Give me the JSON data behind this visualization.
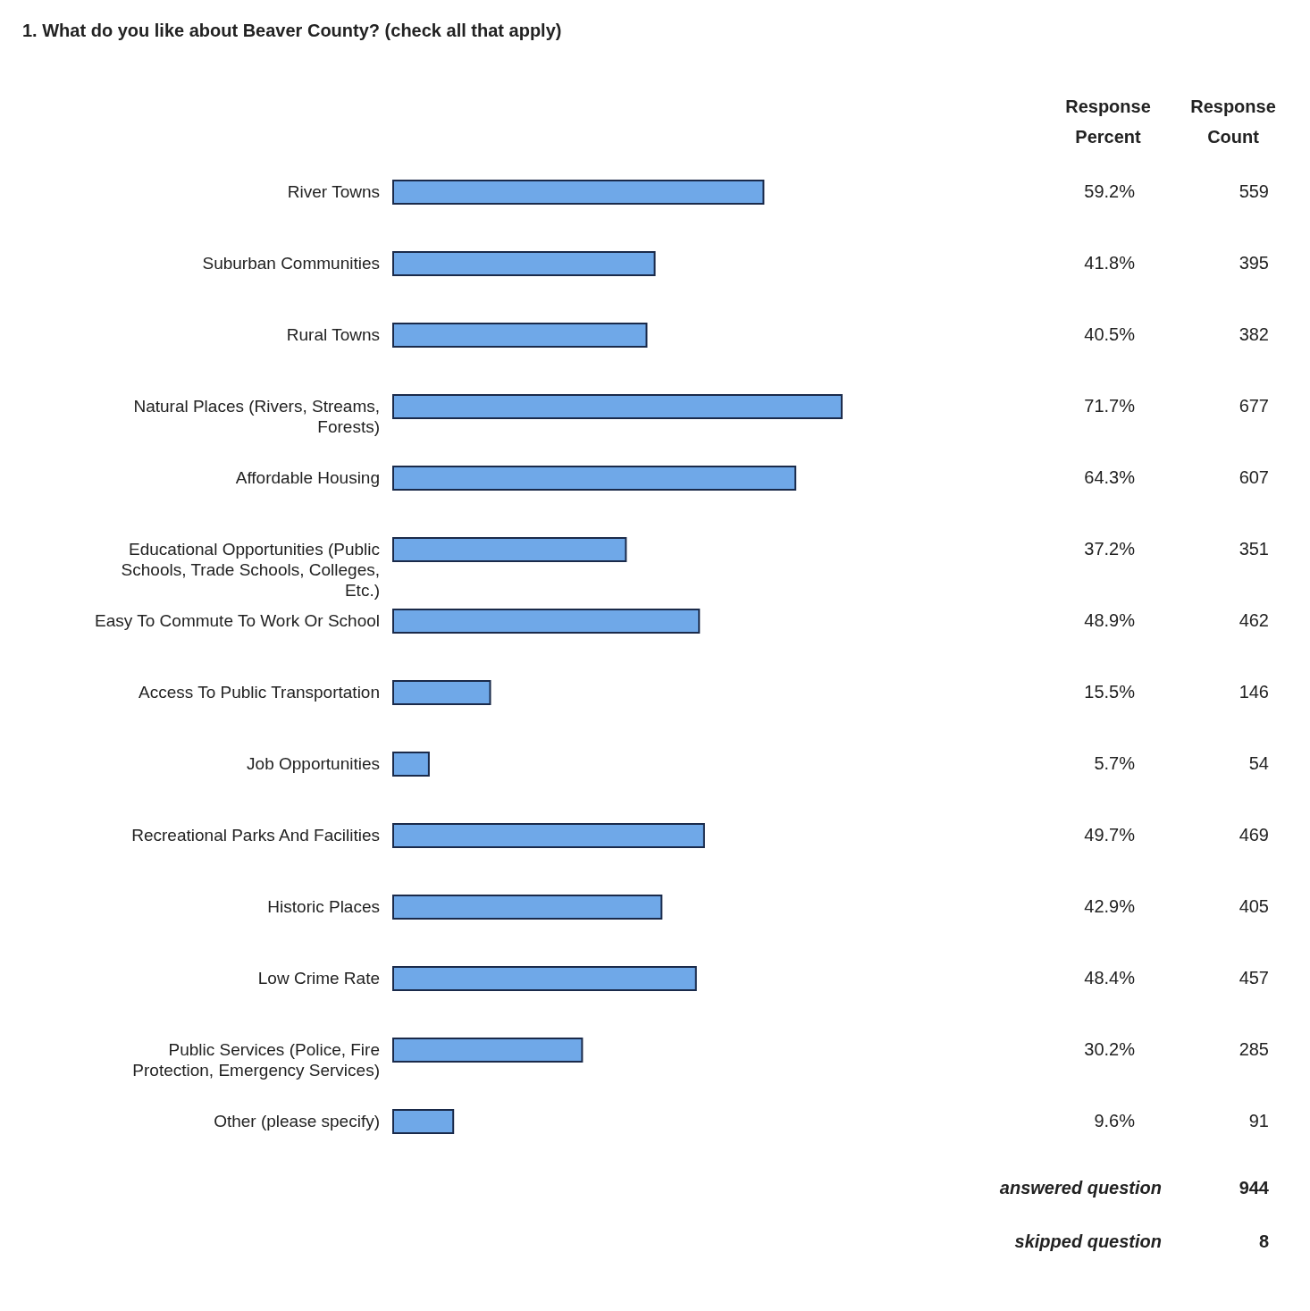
{
  "chart_data": {
    "type": "bar",
    "orientation": "horizontal",
    "title": "1. What do you like about Beaver County? (check all that apply)",
    "categories": [
      "River Towns",
      "Suburban Communities",
      "Rural Towns",
      "Natural Places (Rivers, Streams, Forests)",
      "Affordable Housing",
      "Educational Opportunities (Public Schools, Trade Schools, Colleges, Etc.)",
      "Easy To Commute To Work Or School",
      "Access To Public Transportation",
      "Job Opportunities",
      "Recreational Parks And Facilities",
      "Historic Places",
      "Low Crime Rate",
      "Public Services (Police, Fire Protection, Emergency Services)",
      "Other (please specify)"
    ],
    "values": [
      59.2,
      41.8,
      40.5,
      71.7,
      64.3,
      37.2,
      48.9,
      15.5,
      5.7,
      49.7,
      42.9,
      48.4,
      30.2,
      9.6
    ],
    "value_labels": [
      "59.2%",
      "41.8%",
      "40.5%",
      "71.7%",
      "64.3%",
      "37.2%",
      "48.9%",
      "15.5%",
      "5.7%",
      "49.7%",
      "42.9%",
      "48.4%",
      "30.2%",
      "9.6%"
    ],
    "colors": [
      "#6fa8e8",
      "#6fa8e8",
      "#6fa8e8",
      "#6fa8e8",
      "#6fa8e8",
      "#6fa8e8",
      "#6fa8e8",
      "#6fa8e8",
      "#6fa8e8",
      "#6fa8e8",
      "#6fa8e8",
      "#6fa8e8",
      "#6fa8e8",
      "#6fa8e8"
    ],
    "annotations": [
      "Response Percent",
      "Response Count",
      "559",
      "395",
      "382",
      "677",
      "607",
      "351",
      "462",
      "146",
      "54",
      "469",
      "405",
      "457",
      "285",
      "91",
      "answered question",
      "944",
      "skipped question",
      "8"
    ]
  }
}
